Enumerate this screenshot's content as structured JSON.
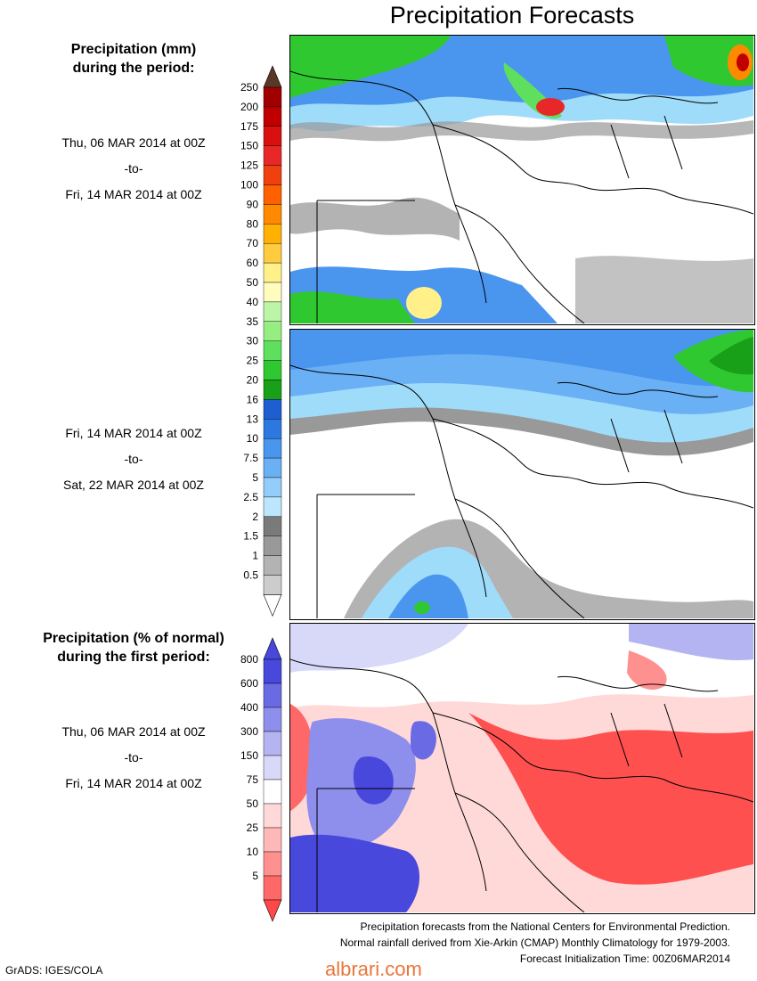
{
  "title": "Precipitation Forecasts",
  "panel1": {
    "heading": [
      "Precipitation (mm)",
      "during the period:"
    ],
    "period": [
      "Thu, 06 MAR 2014 at 00Z",
      "-to-",
      "Fri, 14 MAR 2014 at 00Z"
    ]
  },
  "panel2": {
    "period": [
      "Fri, 14 MAR 2014 at 00Z",
      "-to-",
      "Sat, 22 MAR 2014 at 00Z"
    ]
  },
  "panel3": {
    "heading": [
      "Precipitation (% of normal)",
      "during the first period:"
    ],
    "period": [
      "Thu, 06 MAR 2014 at 00Z",
      "-to-",
      "Fri, 14 MAR 2014 at 00Z"
    ]
  },
  "legend_mm": {
    "levels": [
      "250",
      "200",
      "175",
      "150",
      "125",
      "100",
      "90",
      "80",
      "70",
      "60",
      "50",
      "40",
      "35",
      "30",
      "25",
      "20",
      "16",
      "13",
      "10",
      "7.5",
      "5",
      "2.5",
      "2",
      "1.5",
      "1",
      "0.5"
    ],
    "colors": [
      "#a00000",
      "#c00000",
      "#d81010",
      "#e82828",
      "#f04010",
      "#ff6000",
      "#ff8a00",
      "#ffb000",
      "#ffcc40",
      "#fff08a",
      "#fffcbe",
      "#bdf5a8",
      "#96ee80",
      "#5ee05e",
      "#30c830",
      "#18a018",
      "#1e5ed0",
      "#2c78e0",
      "#4896ee",
      "#6ab0f5",
      "#94cdfa",
      "#bce6fb",
      "#7a7a7a",
      "#999999",
      "#b3b3b3",
      "#cccccc"
    ],
    "top_arrow_color": "#5a3828",
    "bottom_arrow_color": "#ffffff"
  },
  "legend_pct": {
    "levels": [
      "800",
      "600",
      "400",
      "300",
      "150",
      "75",
      "50",
      "25",
      "10",
      "5"
    ],
    "colors": [
      "#4848dc",
      "#6a6ae4",
      "#8e8eec",
      "#b4b4f2",
      "#d8d8f8",
      "#ffffff",
      "#ffd8d8",
      "#ffb8b8",
      "#ff9090",
      "#ff6868"
    ],
    "top_arrow_color": "#4848dc",
    "bottom_arrow_color": "#ff4848"
  },
  "footer": [
    "Precipitation forecasts from the National Centers for Environmental Prediction.",
    "Normal rainfall derived from Xie-Arkin (CMAP) Monthly Climatology for 1979-2003.",
    "Forecast Initialization Time: 00Z06MAR2014"
  ],
  "credit": "GrADS: IGES/COLA",
  "watermark": "albrari.com"
}
